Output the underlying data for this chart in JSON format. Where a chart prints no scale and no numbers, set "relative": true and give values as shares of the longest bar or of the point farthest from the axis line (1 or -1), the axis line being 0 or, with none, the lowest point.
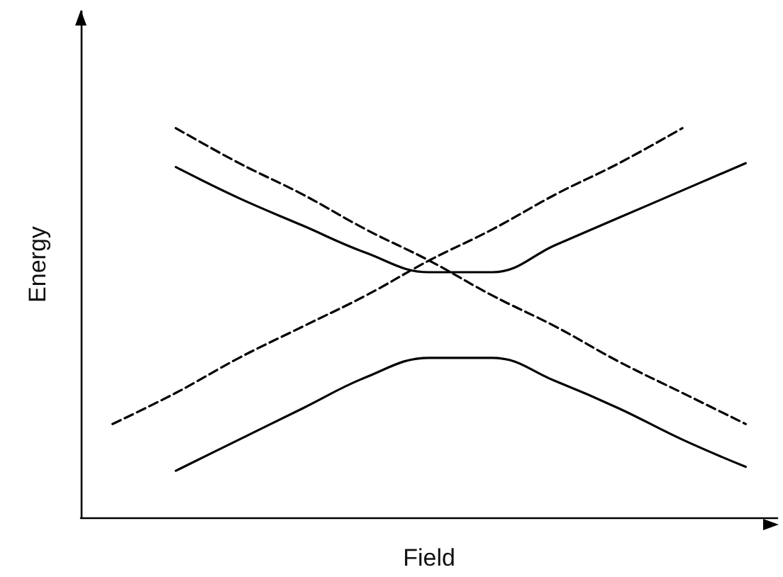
{
  "chart_data": {
    "type": "line",
    "relative": true,
    "xlabel": "Field",
    "ylabel": "Energy",
    "categories": [
      null,
      null,
      null,
      null,
      null,
      null,
      null,
      null,
      null,
      null,
      null
    ],
    "grid": false,
    "marker": "none",
    "series": [
      {
        "color": "#000000",
        "line_style": "dashed",
        "values": [
          null,
          1,
          0.91,
          0.83,
          0.74,
          0.66,
          0.57,
          0.49,
          0.4,
          0.32,
          0.24
        ]
      },
      {
        "color": "#000000",
        "line_style": "dashed",
        "values": [
          0.24,
          0.32,
          0.41,
          0.49,
          0.57,
          0.66,
          0.74,
          0.83,
          0.91,
          1.0,
          null
        ]
      },
      {
        "color": "#000000",
        "line_style": "solid",
        "values": [
          null,
          0.9,
          0.82,
          0.75,
          0.68,
          0.63,
          0.63,
          0.7,
          0.77,
          0.84,
          0.91
        ]
      },
      {
        "color": "#000000",
        "line_style": "solid",
        "values": [
          null,
          0.12,
          0.2,
          0.28,
          0.36,
          0.41,
          0.41,
          0.35,
          0.28,
          0.2,
          0.13
        ]
      }
    ]
  }
}
